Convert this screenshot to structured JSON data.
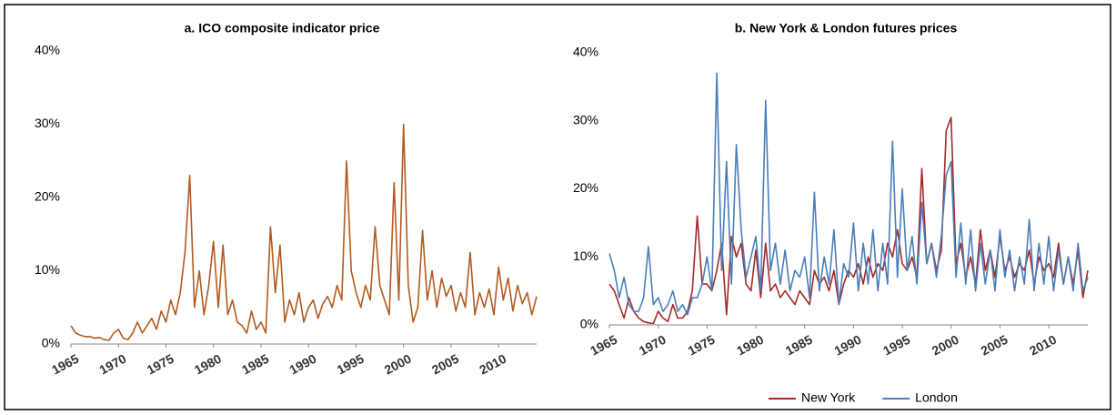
{
  "chart_data": [
    {
      "type": "line",
      "title": "a. ICO composite indicator price",
      "x": [
        1965,
        1965.5,
        1966,
        1966.5,
        1967,
        1967.5,
        1968,
        1968.5,
        1969,
        1969.5,
        1970,
        1970.5,
        1971,
        1971.5,
        1972,
        1972.5,
        1973,
        1973.5,
        1974,
        1974.5,
        1975,
        1975.5,
        1976,
        1976.5,
        1977,
        1977.5,
        1978,
        1978.5,
        1979,
        1979.5,
        1980,
        1980.5,
        1981,
        1981.5,
        1982,
        1982.5,
        1983,
        1983.5,
        1984,
        1984.5,
        1985,
        1985.5,
        1986,
        1986.5,
        1987,
        1987.5,
        1988,
        1988.5,
        1989,
        1989.5,
        1990,
        1990.5,
        1991,
        1991.5,
        1992,
        1992.5,
        1993,
        1993.5,
        1994,
        1994.5,
        1995,
        1995.5,
        1996,
        1996.5,
        1997,
        1997.5,
        1998,
        1998.5,
        1999,
        1999.5,
        2000,
        2000.5,
        2001,
        2001.5,
        2002,
        2002.5,
        2003,
        2003.5,
        2004,
        2004.5,
        2005,
        2005.5,
        2006,
        2006.5,
        2007,
        2007.5,
        2008,
        2008.5,
        2009,
        2009.5,
        2010,
        2010.5,
        2011,
        2011.5,
        2012,
        2012.5,
        2013,
        2013.5,
        2014
      ],
      "series": [
        {
          "name": "ICO composite",
          "color": "#b35a1f",
          "values": [
            2.5,
            1.5,
            1.2,
            1.0,
            1.0,
            0.8,
            0.9,
            0.6,
            0.5,
            1.5,
            2.0,
            0.8,
            0.6,
            1.5,
            3.0,
            1.5,
            2.5,
            3.5,
            2.0,
            4.5,
            3.0,
            6.0,
            4.0,
            7.0,
            12.5,
            23.0,
            5.0,
            10.0,
            4.0,
            8.0,
            14.0,
            5.0,
            13.5,
            4.0,
            6.0,
            3.0,
            2.5,
            1.5,
            4.5,
            2.0,
            3.0,
            1.5,
            16.0,
            7.0,
            13.5,
            3.0,
            6.0,
            4.0,
            7.0,
            3.0,
            5.0,
            6.0,
            3.5,
            5.5,
            6.5,
            5.0,
            8.0,
            6.0,
            25.0,
            10.0,
            7.0,
            5.0,
            8.0,
            6.0,
            16.0,
            8.0,
            6.0,
            4.0,
            22.0,
            6.0,
            30.0,
            8.0,
            3.0,
            5.0,
            15.5,
            6.0,
            10.0,
            5.0,
            9.0,
            6.5,
            8.0,
            4.5,
            7.0,
            5.0,
            12.5,
            4.0,
            7.0,
            5.0,
            7.5,
            4.0,
            10.5,
            6.0,
            9.0,
            4.5,
            8.0,
            5.5,
            7.0,
            4.0,
            6.5
          ]
        }
      ],
      "xlim": [
        1965,
        2014
      ],
      "xticks": [
        1965,
        1970,
        1975,
        1980,
        1985,
        1990,
        1995,
        2000,
        2005,
        2010
      ],
      "ylim": [
        0,
        40
      ],
      "yticks": [
        {
          "value": 0,
          "label": "0%"
        },
        {
          "value": 10,
          "label": "10%"
        },
        {
          "value": 20,
          "label": "20%"
        },
        {
          "value": 30,
          "label": "30%"
        },
        {
          "value": 40,
          "label": "40%"
        }
      ],
      "legend": false
    },
    {
      "type": "line",
      "title": "b. New York & London futures prices",
      "x": [
        1965,
        1965.5,
        1966,
        1966.5,
        1967,
        1967.5,
        1968,
        1968.5,
        1969,
        1969.5,
        1970,
        1970.5,
        1971,
        1971.5,
        1972,
        1972.5,
        1973,
        1973.5,
        1974,
        1974.5,
        1975,
        1975.5,
        1976,
        1976.5,
        1977,
        1977.5,
        1978,
        1978.5,
        1979,
        1979.5,
        1980,
        1980.5,
        1981,
        1981.5,
        1982,
        1982.5,
        1983,
        1983.5,
        1984,
        1984.5,
        1985,
        1985.5,
        1986,
        1986.5,
        1987,
        1987.5,
        1988,
        1988.5,
        1989,
        1989.5,
        1990,
        1990.5,
        1991,
        1991.5,
        1992,
        1992.5,
        1993,
        1993.5,
        1994,
        1994.5,
        1995,
        1995.5,
        1996,
        1996.5,
        1997,
        1997.5,
        1998,
        1998.5,
        1999,
        1999.5,
        2000,
        2000.5,
        2001,
        2001.5,
        2002,
        2002.5,
        2003,
        2003.5,
        2004,
        2004.5,
        2005,
        2005.5,
        2006,
        2006.5,
        2007,
        2007.5,
        2008,
        2008.5,
        2009,
        2009.5,
        2010,
        2010.5,
        2011,
        2011.5,
        2012,
        2012.5,
        2013,
        2013.5,
        2014
      ],
      "series": [
        {
          "name": "New York",
          "color": "#a52a2a",
          "values": [
            6,
            5,
            3,
            1,
            4,
            2,
            1,
            0.5,
            0.3,
            0.2,
            2,
            1,
            0.5,
            3,
            1,
            1,
            2,
            5,
            16,
            6,
            6,
            5,
            8,
            12,
            1.5,
            13,
            10,
            12,
            6,
            5,
            11,
            4,
            12,
            5,
            6,
            4,
            5,
            4,
            3,
            5,
            4,
            3,
            8,
            6,
            7,
            5,
            8,
            3,
            6,
            8,
            7,
            9,
            6,
            10,
            7,
            9,
            8,
            12,
            10,
            14,
            9,
            8,
            10,
            7,
            23,
            9,
            12,
            8,
            11,
            28.5,
            30.5,
            9,
            12,
            7,
            10,
            6,
            14,
            8,
            11,
            7,
            13,
            8,
            10,
            7,
            9,
            8,
            11,
            6,
            10,
            8,
            9,
            7,
            12,
            6,
            10,
            6,
            11,
            4,
            8
          ]
        },
        {
          "name": "London",
          "color": "#4a7ebb",
          "values": [
            10.5,
            8,
            4,
            7,
            3,
            2,
            2,
            4,
            11.5,
            3,
            4,
            2,
            3,
            5,
            2,
            3,
            1.5,
            4,
            4,
            6,
            10,
            5,
            37,
            8,
            24,
            6,
            26.5,
            14,
            7,
            10,
            13,
            5,
            33,
            8,
            12,
            6,
            11,
            5,
            8,
            7,
            10,
            4,
            19.5,
            5,
            10,
            6,
            14,
            3,
            9,
            7,
            15,
            5,
            12,
            6,
            14,
            5,
            12,
            6,
            27,
            7,
            20,
            8,
            13,
            6,
            18,
            9,
            12,
            7,
            13,
            22,
            24,
            7,
            15,
            6,
            14,
            5,
            12,
            6,
            11,
            5,
            14,
            7,
            11,
            5,
            10,
            6,
            15.5,
            5,
            12,
            6,
            13,
            5,
            11,
            6,
            10,
            5,
            12,
            5,
            7
          ]
        }
      ],
      "xlim": [
        1965,
        2014
      ],
      "xticks": [
        1965,
        1970,
        1975,
        1980,
        1985,
        1990,
        1995,
        2000,
        2005,
        2010
      ],
      "ylim": [
        0,
        40
      ],
      "yticks": [
        {
          "value": 0,
          "label": "0%"
        },
        {
          "value": 10,
          "label": "10%"
        },
        {
          "value": 20,
          "label": "20%"
        },
        {
          "value": 30,
          "label": "30%"
        },
        {
          "value": 40,
          "label": "40%"
        }
      ],
      "legend": true
    }
  ]
}
